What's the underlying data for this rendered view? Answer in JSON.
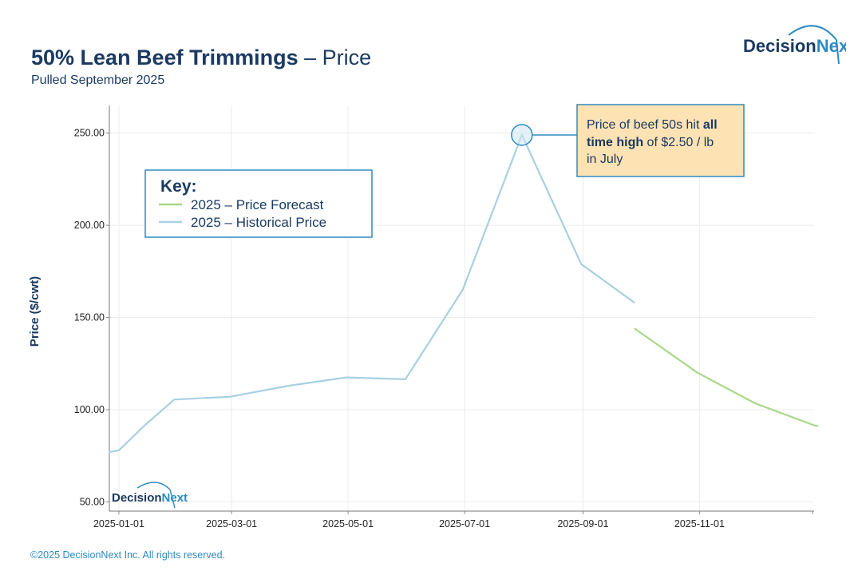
{
  "header": {
    "title_bold": "50% Lean Beef Trimmings",
    "title_rest": " – Price",
    "subtitle": "Pulled September 2025"
  },
  "brand": {
    "name_part1": "Decision",
    "name_part2": "Next",
    "colors": {
      "navy": "#1b3a61",
      "blue": "#2e8bc0",
      "historical": "#a8d0e2",
      "forecast": "#a9d88a",
      "callout_fill": "#fde2b4"
    }
  },
  "footer": {
    "copyright": "©2025 DecisionNext Inc. All rights reserved."
  },
  "chart_data": {
    "type": "line",
    "ylabel": "Price ($/cwt)",
    "xlabel": "",
    "ylim": [
      45,
      265
    ],
    "xlim": [
      "2024-12-27",
      "2025-12-31"
    ],
    "y_ticks": [
      {
        "value": 50,
        "label": "50.00"
      },
      {
        "value": 100,
        "label": "100.00"
      },
      {
        "value": 150,
        "label": "150.00"
      },
      {
        "value": 200,
        "label": "200.00"
      },
      {
        "value": 250,
        "label": "250.00"
      }
    ],
    "x_ticks": [
      {
        "date": "2025-01-01",
        "label": "2025-01-01"
      },
      {
        "date": "2025-03-01",
        "label": "2025-03-01"
      },
      {
        "date": "2025-05-01",
        "label": "2025-05-01"
      },
      {
        "date": "2025-07-01",
        "label": "2025-07-01"
      },
      {
        "date": "2025-09-01",
        "label": "2025-09-01"
      },
      {
        "date": "2025-11-01",
        "label": "2025-11-01"
      }
    ],
    "series": [
      {
        "name": "2025 – Historical Price",
        "color": "#a8d0e2",
        "points": [
          {
            "date": "2024-12-27",
            "value": 77
          },
          {
            "date": "2025-01-01",
            "value": 78
          },
          {
            "date": "2025-01-15",
            "value": 92
          },
          {
            "date": "2025-01-30",
            "value": 105.5
          },
          {
            "date": "2025-02-28",
            "value": 107
          },
          {
            "date": "2025-03-31",
            "value": 113
          },
          {
            "date": "2025-04-30",
            "value": 117.5
          },
          {
            "date": "2025-05-31",
            "value": 116.5
          },
          {
            "date": "2025-06-30",
            "value": 165
          },
          {
            "date": "2025-07-31",
            "value": 249
          },
          {
            "date": "2025-08-31",
            "value": 179
          },
          {
            "date": "2025-09-28",
            "value": 158
          }
        ]
      },
      {
        "name": "2025 – Price Forecast",
        "color": "#a9d88a",
        "points": [
          {
            "date": "2025-09-28",
            "value": 144
          },
          {
            "date": "2025-10-31",
            "value": 120
          },
          {
            "date": "2025-11-30",
            "value": 103.5
          },
          {
            "date": "2025-12-31",
            "value": 91.5
          },
          {
            "date": "2026-01-02",
            "value": 91.2
          }
        ]
      }
    ],
    "legend": {
      "title": "Key:",
      "position": "top-left",
      "entries": [
        {
          "label": "2025 – Price Forecast",
          "color": "#a9d88a"
        },
        {
          "label": "2025 – Historical Price",
          "color": "#a8d0e2"
        }
      ]
    },
    "annotation": {
      "date": "2025-07-31",
      "value": 249,
      "text_line1_plain": "Price of beef 50s hit ",
      "text_line1_bold": "all",
      "text_line2_bold": "time high",
      "text_line2_plain": " of $2.50 / lb",
      "text_line3": "in July"
    }
  }
}
